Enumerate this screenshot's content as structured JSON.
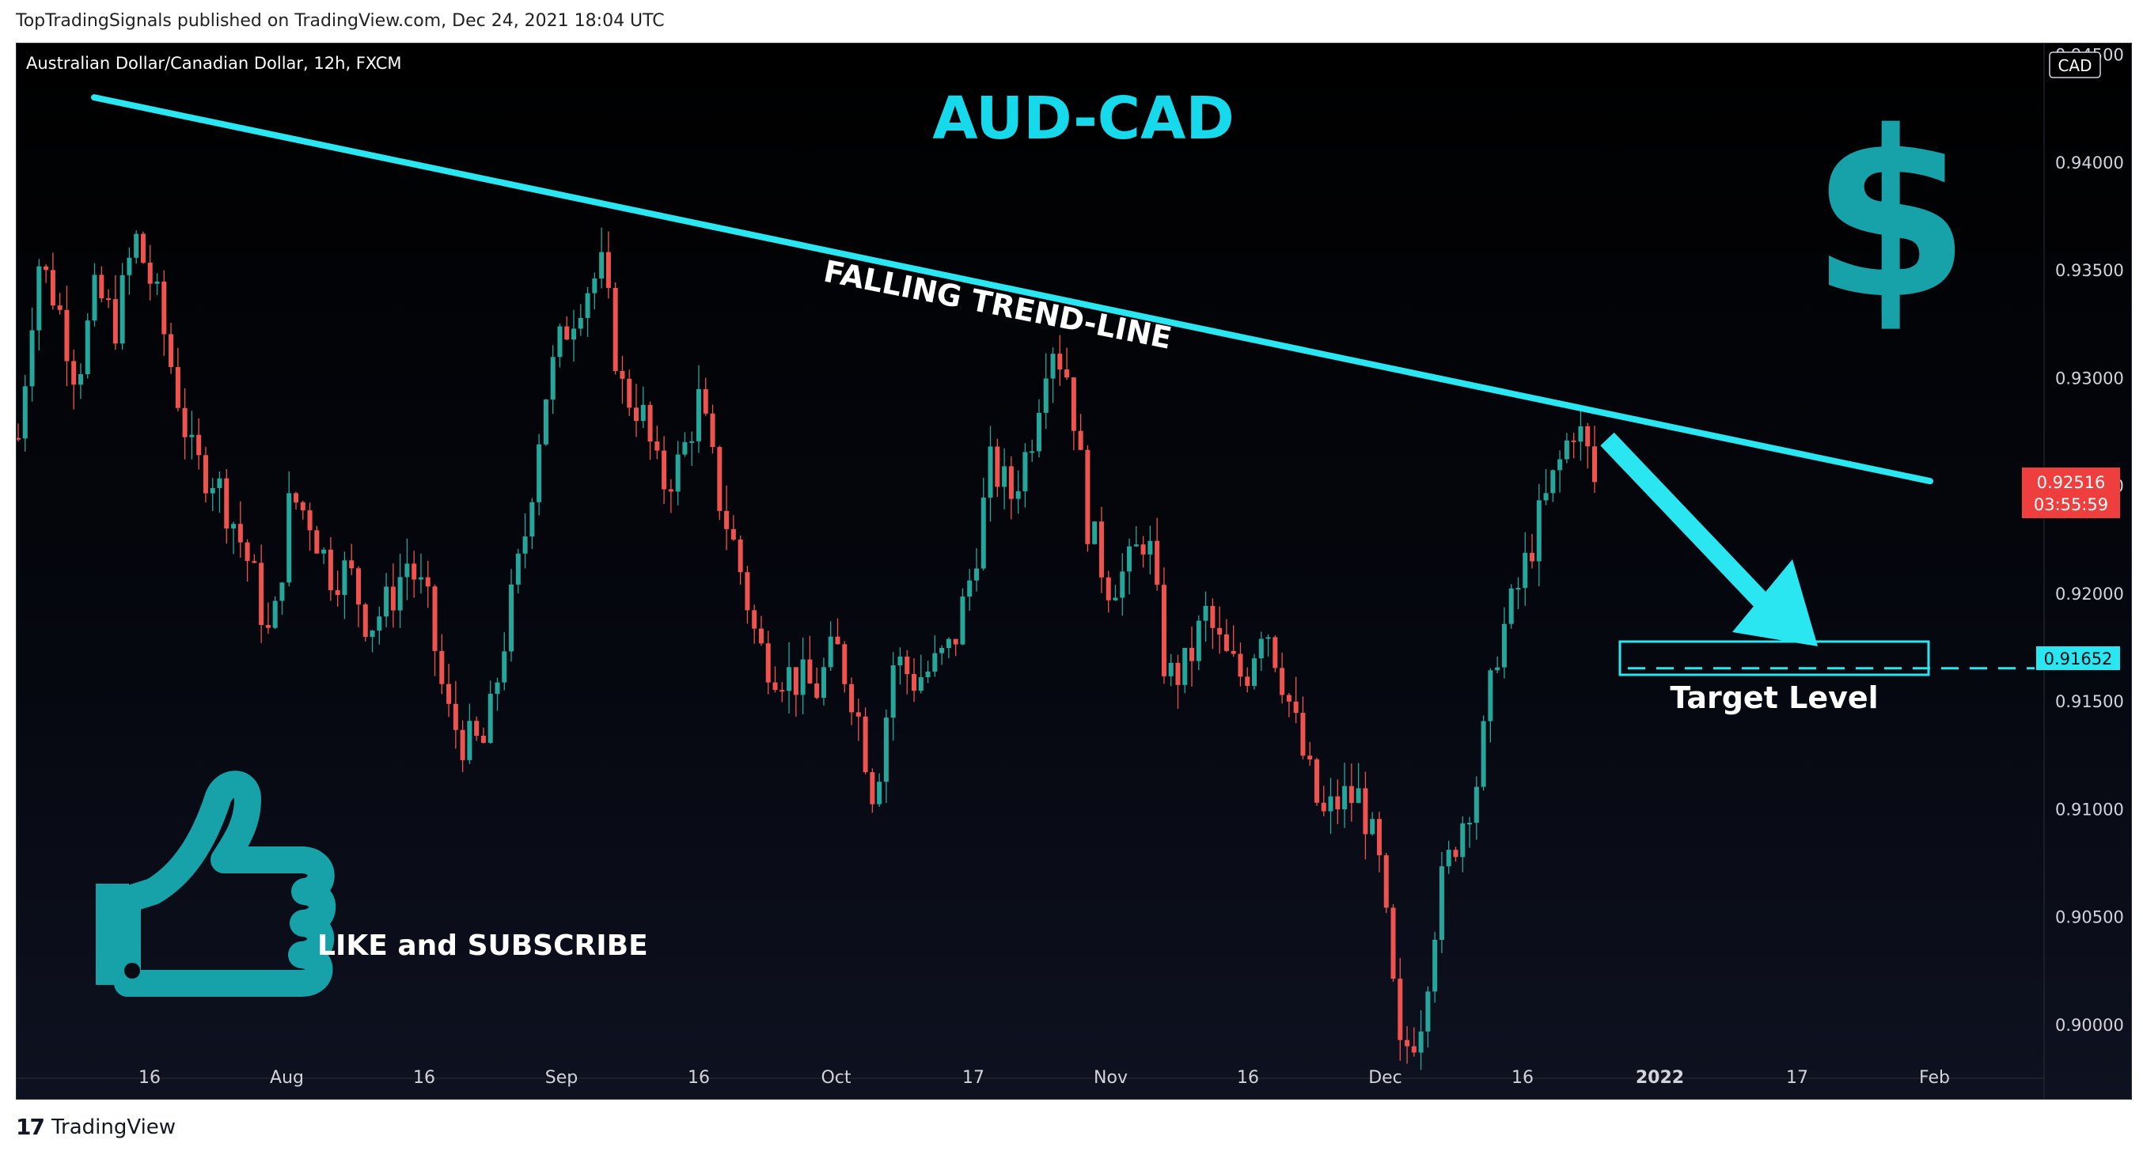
{
  "publisher_line": "TopTradingSignals published on TradingView.com, Dec 24, 2021 18:04 UTC",
  "footer": {
    "brand": "TradingView"
  },
  "symbol_title": "Australian Dollar/Canadian Dollar, 12h, FXCM",
  "currency_badge": "CAD",
  "labels": {
    "pair": "AUD-CAD",
    "trend": "FALLING TREND-LINE",
    "target": "Target Level",
    "cta": "LIKE and SUBSCRIBE"
  },
  "price_badge": {
    "price": "0.92516",
    "countdown": "03:55:59"
  },
  "target_badge": "0.91652",
  "colors": {
    "up": "#26a69a",
    "down": "#ef5350",
    "trend": "#29e6f0",
    "accent_text": "#16d9ec",
    "icon": "#16a2a8",
    "badge_red": "#ef3e3e"
  },
  "icons": [
    "dollar-icon",
    "thumbs-up-icon",
    "tradingview-logo-icon"
  ],
  "chart_data": {
    "type": "candlestick",
    "title": "Australian Dollar/Canadian Dollar, 12h, FXCM",
    "ylim": [
      0.8975,
      0.9455
    ],
    "y_ticks": [
      "0.94500",
      "0.94000",
      "0.93500",
      "0.93000",
      "0.92500",
      "0.92000",
      "0.91500",
      "0.91000",
      "0.90500",
      "0.90000"
    ],
    "x_ticks": [
      "16",
      "Aug",
      "16",
      "Sep",
      "16",
      "Oct",
      "17",
      "Nov",
      "16",
      "Dec",
      "16",
      "2022",
      "17",
      "Feb"
    ],
    "last_price": 0.92516,
    "target_level": 0.91652,
    "trend_line": {
      "start": 0.943,
      "end": 0.9252
    },
    "close_path": [
      0.9272,
      0.9355,
      0.9335,
      0.93,
      0.934,
      0.9325,
      0.9365,
      0.934,
      0.93,
      0.926,
      0.9255,
      0.9235,
      0.921,
      0.9175,
      0.9245,
      0.9235,
      0.921,
      0.921,
      0.9185,
      0.9195,
      0.9215,
      0.9195,
      0.9145,
      0.913,
      0.913,
      0.918,
      0.9225,
      0.929,
      0.932,
      0.934,
      0.935,
      0.9295,
      0.9285,
      0.925,
      0.926,
      0.929,
      0.9245,
      0.9215,
      0.9175,
      0.9165,
      0.916,
      0.9155,
      0.9175,
      0.915,
      0.9105,
      0.917,
      0.916,
      0.9165,
      0.9175,
      0.921,
      0.926,
      0.9245,
      0.927,
      0.932,
      0.93,
      0.923,
      0.9205,
      0.921,
      0.923,
      0.916,
      0.9165,
      0.919,
      0.917,
      0.916,
      0.919,
      0.916,
      0.9125,
      0.9095,
      0.9105,
      0.9105,
      0.907,
      0.8985,
      0.9,
      0.906,
      0.909,
      0.9115,
      0.9175,
      0.92,
      0.923,
      0.9255,
      0.928,
      0.9255
    ]
  }
}
